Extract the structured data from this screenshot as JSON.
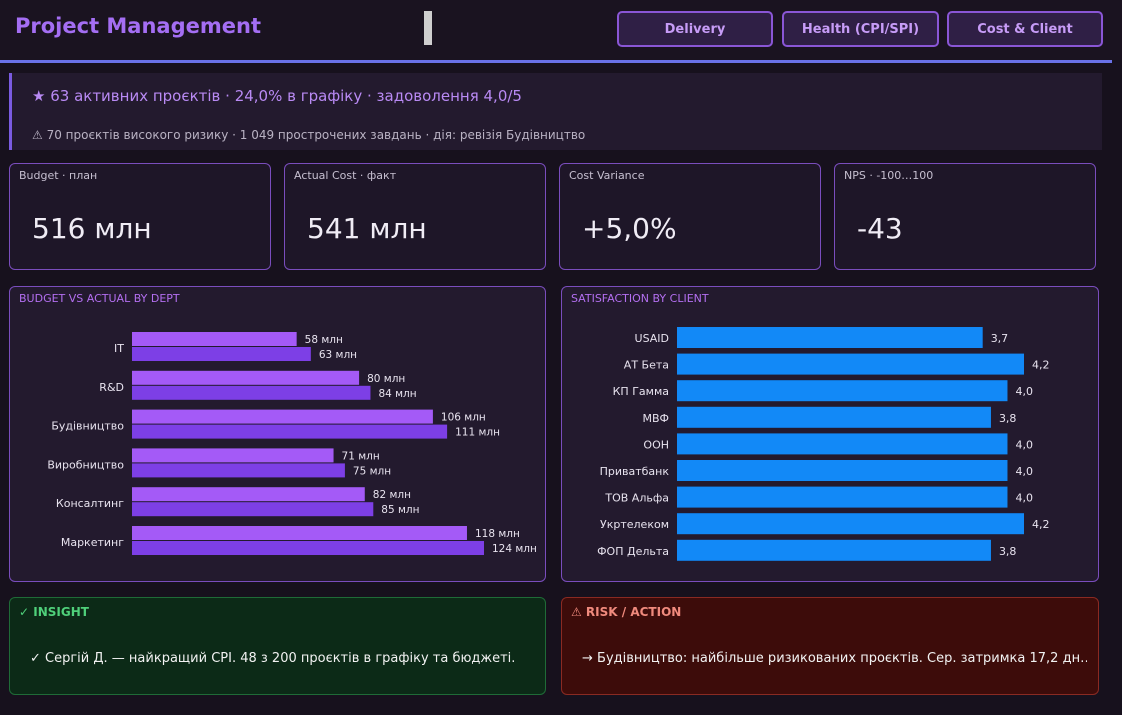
{
  "header": {
    "title": "Project Management",
    "nav": [
      "Delivery",
      "Health (CPI/SPI)",
      "Cost & Client"
    ]
  },
  "banner": {
    "main": "★ 63 активних проєктів · 24,0% в графіку · задоволення 4,0/5",
    "sub": "⚠ 70 проєктів високого ризику · 1 049 прострочених завдань · дія: ревізія Будівництво"
  },
  "kpis": [
    {
      "label": "Budget · план",
      "value": "516 млн"
    },
    {
      "label": "Actual Cost · факт",
      "value": "541 млн"
    },
    {
      "label": "Cost Variance",
      "value": "+5,0%"
    },
    {
      "label": "NPS · -100…100",
      "value": "-43"
    }
  ],
  "chart_data": [
    {
      "type": "bar",
      "orientation": "horizontal",
      "title": "BUDGET VS ACTUAL BY DEPT",
      "categories": [
        "IT",
        "R&D",
        "Будівництво",
        "Виробництво",
        "Консалтинг",
        "Маркетинг"
      ],
      "series": [
        {
          "values": [
            58,
            80,
            106,
            71,
            82,
            118
          ],
          "labels": [
            "58 млн",
            "80 млн",
            "106 млн",
            "71 млн",
            "82 млн",
            "118 млн"
          ],
          "color": "#a45af7"
        },
        {
          "values": [
            63,
            84,
            111,
            75,
            85,
            124
          ],
          "labels": [
            "63 млн",
            "84 млн",
            "111 млн",
            "75 млн",
            "85 млн",
            "124 млн"
          ],
          "color": "#7d3fe6"
        }
      ],
      "xlim": [
        0,
        124
      ],
      "grid": false
    },
    {
      "type": "bar",
      "orientation": "horizontal",
      "title": "SATISFACTION BY CLIENT",
      "categories": [
        "USAID",
        "АТ Бета",
        "КП Гамма",
        "МВФ",
        "ООН",
        "Приватбанк",
        "ТОВ Альфа",
        "Укртелеком",
        "ФОП Дельта"
      ],
      "values": [
        3.7,
        4.2,
        4.0,
        3.8,
        4.0,
        4.0,
        4.0,
        4.2,
        3.8
      ],
      "labels": [
        "3,7",
        "4,2",
        "4,0",
        "3,8",
        "4,0",
        "4,0",
        "4,0",
        "4,2",
        "3,8"
      ],
      "color": "#1289f7",
      "xlim": [
        0,
        4.2
      ],
      "grid": false
    }
  ],
  "insight": {
    "title": "✓ INSIGHT",
    "text": "✓ Сергій Д. — найкращий CPI. 48 з 200 проєктів в графіку та бюджеті."
  },
  "risk": {
    "title": "⚠ RISK / ACTION",
    "text": "→ Будівництво: найбільше ризикованих проєктів. Сер. затримка 17,2 дн…"
  },
  "colors": {
    "accent": "#a46ef3",
    "insight_bg": "#0c2a17",
    "insight_title": "#4fd07a",
    "risk_bg": "#3d0c0a",
    "risk_title": "#f08a7d"
  }
}
